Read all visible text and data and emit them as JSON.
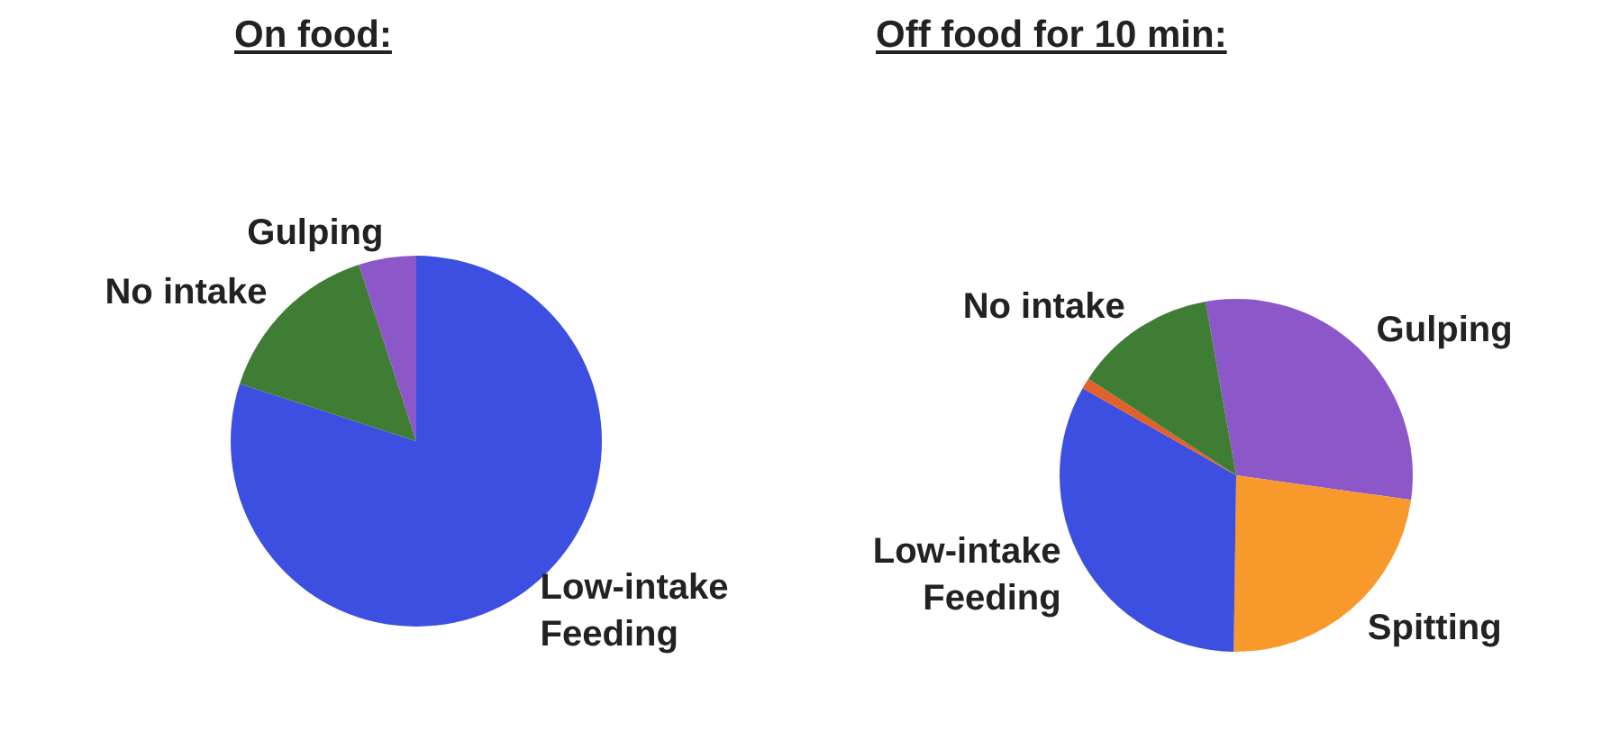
{
  "chart_data": [
    {
      "type": "pie",
      "title": "On food:",
      "categories": [
        "Low-intake\nFeeding",
        "No intake",
        "Gulping"
      ],
      "values": [
        80,
        15,
        5
      ],
      "colors": [
        "#3c4fe0",
        "#3f7d35",
        "#8c57c9"
      ]
    },
    {
      "type": "pie",
      "title": "Off food for 10 min:",
      "categories": [
        "Gulping",
        "Spitting",
        "Low-intake\nFeeding",
        null,
        "No intake"
      ],
      "values": [
        30,
        23,
        33,
        1,
        13
      ],
      "colors": [
        "#8c57c9",
        "#f8992c",
        "#3c4fe0",
        "#e4602a",
        "#3f7d35"
      ]
    }
  ]
}
